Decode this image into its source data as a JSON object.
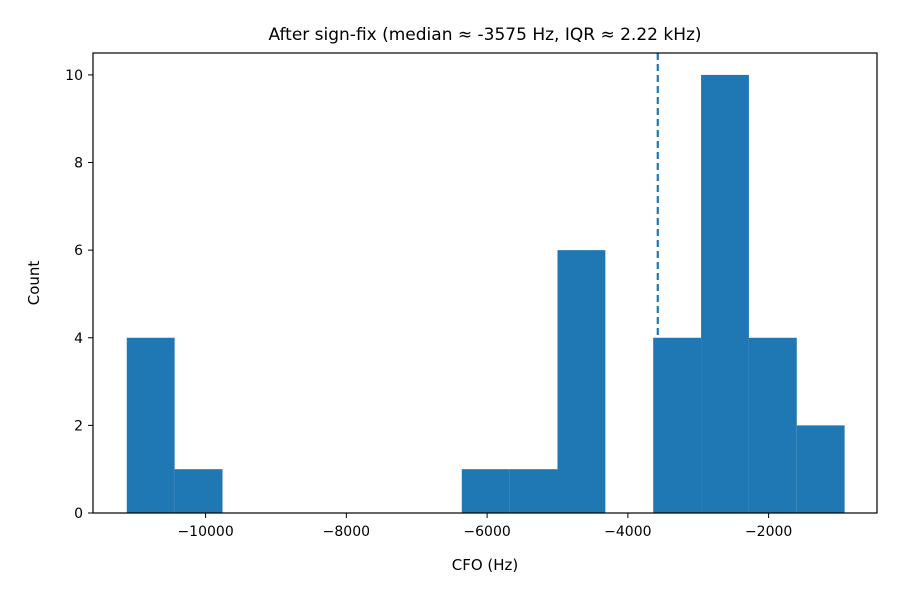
{
  "chart_data": {
    "type": "bar",
    "title": "After sign-fix (median ≈ -3575 Hz, IQR ≈ 2.22 kHz)",
    "xlabel": "CFO (Hz)",
    "ylabel": "Count",
    "xlim": [
      -11600,
      -460
    ],
    "ylim": [
      0,
      10.5
    ],
    "grid": false,
    "bar_color": "#1f77b4",
    "median_line": {
      "x": -3575,
      "color": "#1f77b4",
      "style": "dashed"
    },
    "bins": [
      {
        "x0": -11120,
        "x1": -10440,
        "count": 4
      },
      {
        "x0": -10440,
        "x1": -9760,
        "count": 1
      },
      {
        "x0": -9760,
        "x1": -9080,
        "count": 0
      },
      {
        "x0": -9080,
        "x1": -8400,
        "count": 0
      },
      {
        "x0": -8400,
        "x1": -7720,
        "count": 0
      },
      {
        "x0": -7720,
        "x1": -7040,
        "count": 0
      },
      {
        "x0": -7040,
        "x1": -6360,
        "count": 0
      },
      {
        "x0": -6360,
        "x1": -5680,
        "count": 1
      },
      {
        "x0": -5680,
        "x1": -5000,
        "count": 1
      },
      {
        "x0": -5000,
        "x1": -4320,
        "count": 6
      },
      {
        "x0": -4320,
        "x1": -3640,
        "count": 0
      },
      {
        "x0": -3640,
        "x1": -2960,
        "count": 4
      },
      {
        "x0": -2960,
        "x1": -2280,
        "count": 10
      },
      {
        "x0": -2280,
        "x1": -1600,
        "count": 4
      },
      {
        "x0": -1600,
        "x1": -920,
        "count": 2
      }
    ],
    "xticks": [
      {
        "value": -10000,
        "label": "−10000"
      },
      {
        "value": -8000,
        "label": "−8000"
      },
      {
        "value": -6000,
        "label": "−6000"
      },
      {
        "value": -4000,
        "label": "−4000"
      },
      {
        "value": -2000,
        "label": "−2000"
      }
    ],
    "yticks": [
      {
        "value": 0,
        "label": "0"
      },
      {
        "value": 2,
        "label": "2"
      },
      {
        "value": 4,
        "label": "4"
      },
      {
        "value": 6,
        "label": "6"
      },
      {
        "value": 8,
        "label": "8"
      },
      {
        "value": 10,
        "label": "10"
      }
    ]
  }
}
